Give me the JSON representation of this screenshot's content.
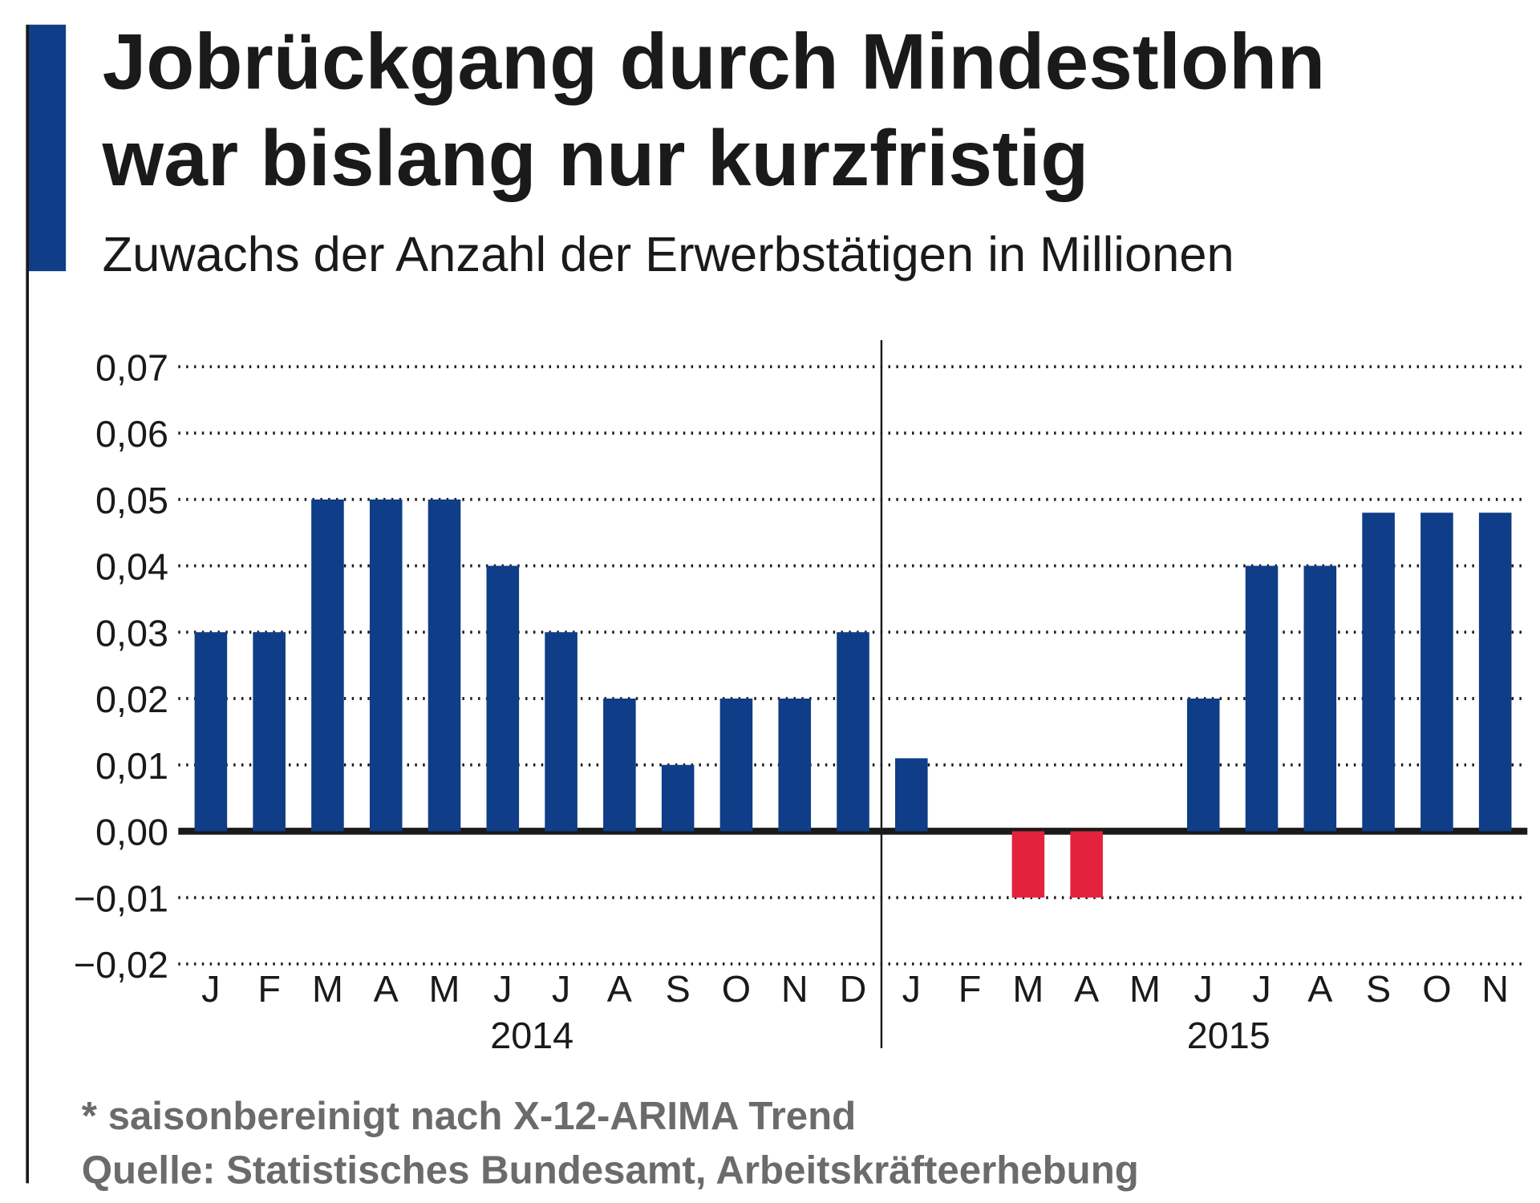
{
  "title_line1": "Jobrückgang durch Mindestlohn",
  "title_line2": "war bislang nur kurzfristig",
  "subtitle": "Zuwachs der Anzahl der Erwerbstätigen in Millionen",
  "footnote": "* saisonbereinigt nach X-12-ARIMA Trend",
  "source": "Quelle: Statistisches Bundesamt, Arbeitskräfteerhebung",
  "colors": {
    "accent": "#0f3d87",
    "positive": "#0f3d87",
    "negative": "#e3223e"
  },
  "chart_data": {
    "type": "bar",
    "title": "Zuwachs der Anzahl der Erwerbstätigen in Millionen",
    "ylim": [
      -0.02,
      0.07
    ],
    "yticks": [
      "0,07",
      "0,06",
      "0,05",
      "0,04",
      "0,03",
      "0,02",
      "0,01",
      "0,00",
      "−0,01",
      "−0,02"
    ],
    "ytick_values": [
      0.07,
      0.06,
      0.05,
      0.04,
      0.03,
      0.02,
      0.01,
      0.0,
      -0.01,
      -0.02
    ],
    "grid": "dotted horizontal",
    "groups": [
      {
        "label": "2014",
        "categories": [
          "J",
          "F",
          "M",
          "A",
          "M",
          "J",
          "J",
          "A",
          "S",
          "O",
          "N",
          "D"
        ],
        "values": [
          0.03,
          0.03,
          0.05,
          0.05,
          0.05,
          0.04,
          0.03,
          0.02,
          0.01,
          0.02,
          0.02,
          0.03
        ]
      },
      {
        "label": "2015",
        "categories": [
          "J",
          "F",
          "M",
          "A",
          "M",
          "J",
          "J",
          "A",
          "S",
          "O",
          "N"
        ],
        "values": [
          0.011,
          0,
          -0.01,
          -0.01,
          0,
          0.02,
          0.04,
          0.04,
          0.048,
          0.048,
          0.048
        ]
      }
    ]
  }
}
